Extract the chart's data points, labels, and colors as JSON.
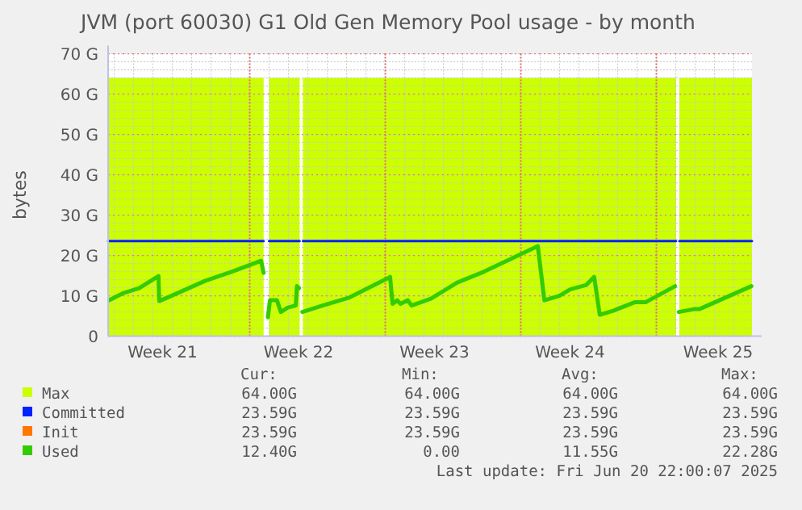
{
  "chart_data": {
    "type": "line",
    "title": "JVM (port 60030) G1 Old Gen Memory Pool usage - by month",
    "ylabel": "bytes",
    "xlim": [
      "2025-05-18T16:30",
      "2025-06-20T22:30"
    ],
    "ylim": [
      0,
      70
    ],
    "xticks": [
      {
        "value": "2025-05-21T12:00",
        "label": "Week 21"
      },
      {
        "value": "2025-05-26",
        "label": null
      },
      {
        "value": "2025-05-28T12:30",
        "label": "Week 22"
      },
      {
        "value": "2025-06-02",
        "label": null
      },
      {
        "value": "2025-06-04T13:00",
        "label": "Week 23"
      },
      {
        "value": "2025-06-09",
        "label": null
      },
      {
        "value": "2025-06-11T13:00",
        "label": "Week 24"
      },
      {
        "value": "2025-06-16",
        "label": null
      },
      {
        "value": "2025-06-19T04:30",
        "label": "Week 25"
      }
    ],
    "yticks": [
      0,
      {
        "value": 10,
        "label": "10 G"
      },
      {
        "value": 20,
        "label": "20 G"
      },
      {
        "value": 30,
        "label": "30 G"
      },
      {
        "value": 40,
        "label": "40 G"
      },
      {
        "value": 50,
        "label": "50 G"
      },
      {
        "value": 60,
        "label": "60 G"
      },
      {
        "value": 70,
        "label": "70 G"
      }
    ],
    "grid": true,
    "legend": "bottom",
    "series": [
      {
        "name": "Max",
        "type": "area",
        "color": "#ccff00",
        "x": [
          "2025-05-18T16:30",
          "2025-05-26T17:13",
          "2025-05-26T20:35",
          "2025-05-26T23:56",
          "2025-05-28T13:52",
          "2025-05-28T15:47",
          "2025-05-28T17:56",
          "2025-06-17T00:25",
          "2025-06-17T02:20",
          "2025-06-17T04:30",
          "2025-06-20T22:30"
        ],
        "values": [
          64,
          64,
          null,
          64,
          64,
          null,
          64,
          64,
          null,
          64,
          64
        ]
      },
      {
        "name": "Committed",
        "color": "#0022ff",
        "x": [
          "2025-05-18T16:30",
          "2025-05-26T17:13",
          "2025-05-26T20:35",
          "2025-05-26T23:56",
          "2025-05-28T13:52",
          "2025-05-28T15:47",
          "2025-05-28T17:56",
          "2025-06-17T00:25",
          "2025-06-17T02:20",
          "2025-06-17T04:30",
          "2025-06-20T22:30"
        ],
        "values": [
          23.59,
          23.59,
          null,
          23.59,
          23.59,
          null,
          23.59,
          23.59,
          null,
          23.59,
          23.59
        ]
      },
      {
        "name": "Init",
        "color": "#ff7700"
      },
      {
        "name": "Used",
        "color": "#33cc00",
        "x": [
          "2025-05-18T17:56",
          "2025-05-19T11:42",
          "2025-05-20T06:54",
          "2025-05-21T06:54",
          "2025-05-21T07:52",
          "2025-05-22T06:54",
          "2025-05-23T16:30",
          "2025-05-25T02:06",
          "2025-05-26T14:06",
          "2025-05-26T17:13",
          "2025-05-26T20:06",
          "2025-05-26T22:30",
          "2025-05-27T01:08",
          "2025-05-27T09:47",
          "2025-05-27T14:35",
          "2025-05-27T23:13",
          "2025-05-28T09:04",
          "2025-05-28T10:30",
          "2025-05-28T13:08",
          "2025-05-28T15:18",
          "2025-05-28T17:13",
          "2025-05-29T18:25",
          "2025-05-31T03:47",
          "2025-06-02T02:35",
          "2025-06-02T05:56",
          "2025-06-02T09:04",
          "2025-06-02T14:35",
          "2025-06-02T18:54",
          "2025-06-03T03:47",
          "2025-06-03T08:35",
          "2025-06-04T08:35",
          "2025-06-05T17:13",
          "2025-06-07T02:35",
          "2025-06-09T21:04",
          "2025-06-10T05:13",
          "2025-06-10T23:42",
          "2025-06-11T13:08",
          "2025-06-12T09:18",
          "2025-06-12T18:54",
          "2025-06-13T01:52",
          "2025-06-13T18:25",
          "2025-06-14T21:04",
          "2025-06-15T10:30",
          "2025-06-16T23:13",
          "2025-06-17T01:37",
          "2025-06-17T03:47",
          "2025-06-17T22:30",
          "2025-06-18T05:13",
          "2025-06-20T21:47"
        ],
        "values": [
          8.9,
          10.7,
          11.9,
          14.9,
          8.7,
          10.7,
          13.7,
          16.0,
          18.7,
          15.7,
          null,
          4.7,
          8.9,
          8.9,
          6.0,
          7.1,
          7.6,
          12.4,
          11.9,
          null,
          6.0,
          7.6,
          9.6,
          14.3,
          14.7,
          8.0,
          8.9,
          8.0,
          8.9,
          7.6,
          9.3,
          13.3,
          16.0,
          22.3,
          8.9,
          10.0,
          11.6,
          12.7,
          14.7,
          5.3,
          6.3,
          8.4,
          8.4,
          12.4,
          null,
          6.0,
          6.7,
          6.7,
          12.4
        ]
      }
    ],
    "annotations": [
      "Cur:",
      "Min:",
      "Avg:",
      "Max:",
      "64.00G",
      "64.00G",
      "64.00G",
      "64.00G",
      "23.59G",
      "23.59G",
      "23.59G",
      "23.59G",
      "23.59G",
      "23.59G",
      "23.59G",
      "23.59G",
      "12.40G",
      "0.00",
      "11.55G",
      "22.28G",
      "Last update: Fri Jun 20 22:00:07 2025"
    ]
  }
}
